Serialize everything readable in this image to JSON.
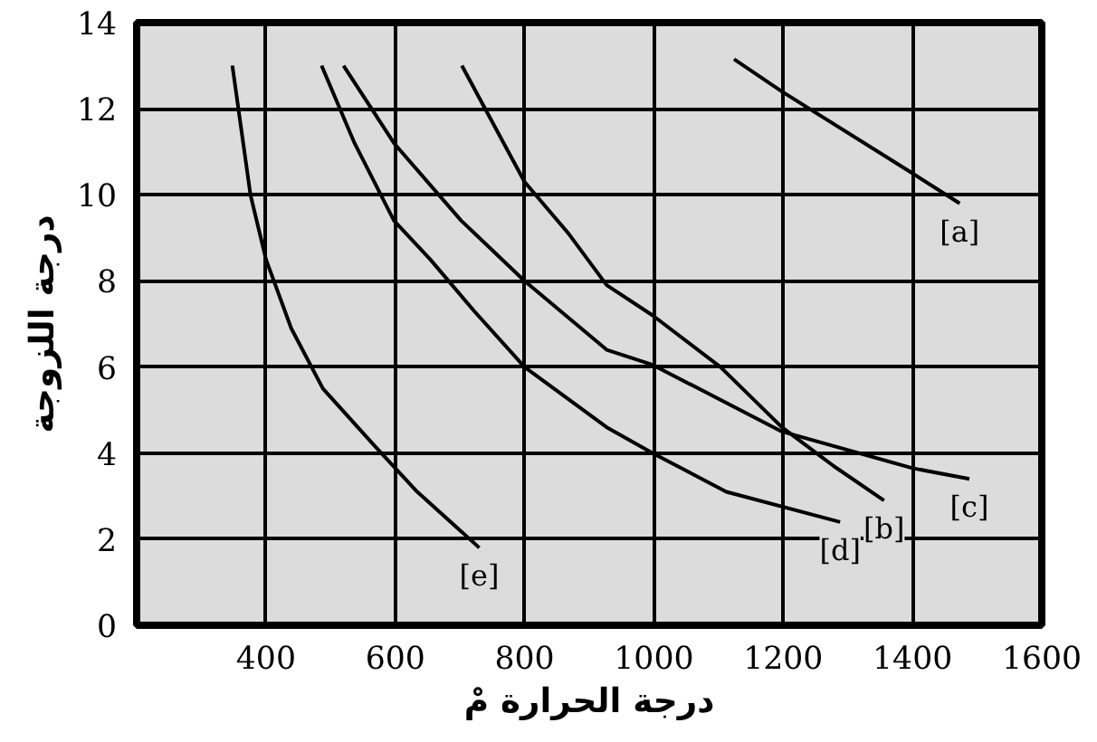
{
  "chart_data": {
    "type": "line",
    "xlabel": "درجة الحرارة مْ",
    "ylabel": "درجة اللزوجة",
    "xlim": [
      200,
      1600
    ],
    "ylim": [
      0,
      14
    ],
    "xticks": [
      400,
      600,
      800,
      1000,
      1200,
      1400,
      1600
    ],
    "yticks": [
      0,
      2,
      4,
      6,
      8,
      10,
      12,
      14
    ],
    "grid": true,
    "marker": "none",
    "line_style": "solid",
    "series": [
      {
        "name": "[a]",
        "color": "#000000",
        "x": [
          1124,
          1198,
          1400,
          1473
        ],
        "values": [
          13.15,
          12.4,
          10.5,
          9.8
        ]
      },
      {
        "name": "[b]",
        "color": "#000000",
        "x": [
          703,
          800,
          868,
          927,
          998,
          1103,
          1198,
          1278,
          1356
        ],
        "values": [
          13,
          10.3,
          9.1,
          7.9,
          7.2,
          6.0,
          4.6,
          3.7,
          2.9
        ]
      },
      {
        "name": "[c]",
        "color": "#000000",
        "x": [
          520,
          598,
          702,
          800,
          927,
          998,
          1198,
          1400,
          1488
        ],
        "values": [
          13,
          11.2,
          9.4,
          8.0,
          6.4,
          6.05,
          4.5,
          3.65,
          3.4
        ]
      },
      {
        "name": "[d]",
        "color": "#000000",
        "x": [
          486,
          537,
          598,
          654,
          722,
          800,
          927,
          998,
          1112,
          1288
        ],
        "values": [
          13,
          11.2,
          9.4,
          8.5,
          7.3,
          6.0,
          4.6,
          4.0,
          3.1,
          2.4
        ]
      },
      {
        "name": "[e]",
        "color": "#000000",
        "x": [
          348,
          376,
          400,
          439,
          488,
          566,
          634,
          730
        ],
        "values": [
          13.0,
          10.0,
          8.5,
          6.9,
          5.5,
          4.2,
          3.1,
          1.8
        ]
      }
    ]
  }
}
